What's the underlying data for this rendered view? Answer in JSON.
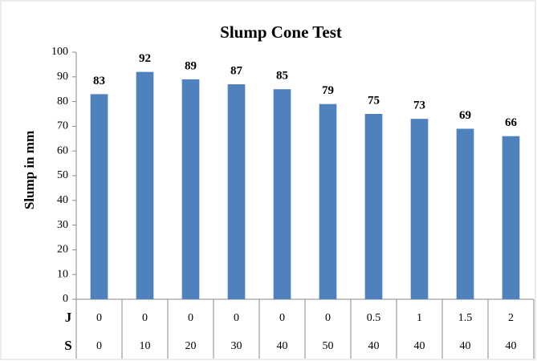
{
  "chart_data": {
    "type": "bar",
    "title": "Slump Cone Test",
    "y_label": "Slump in mm",
    "category_levels": [
      {
        "name": "J",
        "labels": [
          "0",
          "0",
          "0",
          "0",
          "0",
          "0",
          "0.5",
          "1",
          "1.5",
          "2"
        ]
      },
      {
        "name": "S",
        "labels": [
          "0",
          "10",
          "20",
          "30",
          "40",
          "50",
          "40",
          "40",
          "40",
          "40"
        ]
      }
    ],
    "values": [
      83,
      92,
      89,
      87,
      85,
      79,
      75,
      73,
      69,
      66
    ],
    "color": "#4f81bd",
    "ylim": [
      0,
      100
    ],
    "yticks": [
      0,
      10,
      20,
      30,
      40,
      50,
      60,
      70,
      80,
      90,
      100
    ],
    "grid": false
  }
}
